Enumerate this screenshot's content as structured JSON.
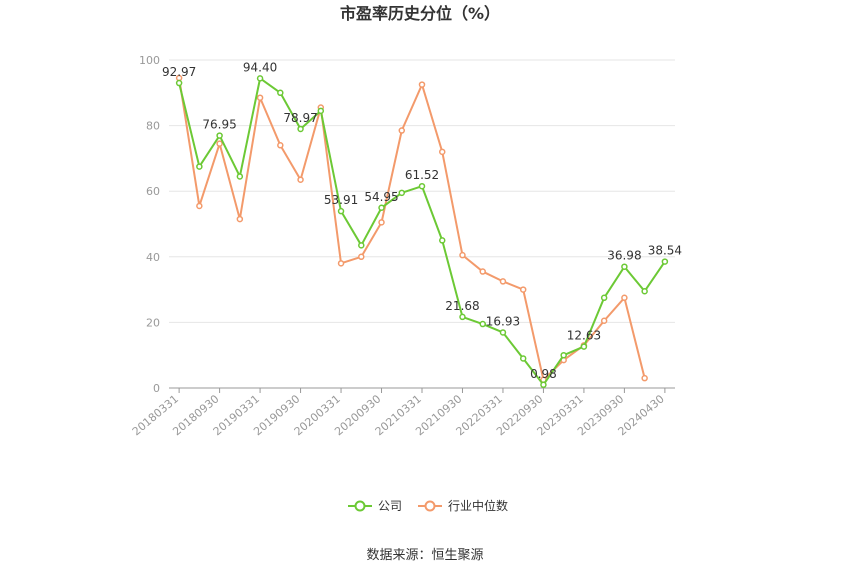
{
  "chart_data": {
    "type": "line",
    "title": "市盈率历史分位（%）",
    "x": [
      "20180331",
      "20180630",
      "20180930",
      "20181231",
      "20190331",
      "20190630",
      "20190930",
      "20191231",
      "20200331",
      "20200630",
      "20200930",
      "20201231",
      "20210331",
      "20210630",
      "20210930",
      "20211231",
      "20220331",
      "20220630",
      "20220930",
      "20221231",
      "20230331",
      "20230630",
      "20230930",
      "20231231",
      "20240430"
    ],
    "x_tick_labels": [
      "20180331",
      "20180930",
      "20190331",
      "20190930",
      "20200331",
      "20200930",
      "20210331",
      "20210930",
      "20220331",
      "20220930",
      "20230331",
      "20230930",
      "20240430"
    ],
    "ylim": [
      0,
      100
    ],
    "y_ticks": [
      0,
      20,
      40,
      60,
      80,
      100
    ],
    "grid": true,
    "legend_position": "bottom",
    "series": [
      {
        "name": "公司",
        "color": "#6cc935",
        "values": [
          92.97,
          67.5,
          76.95,
          64.5,
          94.4,
          90.0,
          78.97,
          84.5,
          53.91,
          43.5,
          54.95,
          59.5,
          61.52,
          45.0,
          21.68,
          19.5,
          16.93,
          9.0,
          0.98,
          10.0,
          12.63,
          27.5,
          36.98,
          29.5,
          38.54
        ],
        "labels": [
          "92.97",
          "",
          "76.95",
          "",
          "94.40",
          "",
          "78.97",
          "",
          "53.91",
          "",
          "54.95",
          "",
          "61.52",
          "",
          "21.68",
          "",
          "16.93",
          "",
          "0.98",
          "",
          "12.63",
          "",
          "36.98",
          "",
          "38.54"
        ]
      },
      {
        "name": "行业中位数",
        "color": "#f39a6b",
        "values": [
          94.5,
          55.5,
          74.5,
          51.5,
          88.5,
          74.0,
          63.5,
          85.5,
          38.0,
          40.0,
          50.5,
          78.5,
          92.5,
          72.0,
          40.5,
          35.5,
          32.5,
          30.0,
          2.5,
          8.5,
          13.0,
          20.5,
          27.5,
          3.0,
          null
        ]
      }
    ]
  },
  "footer": {
    "source": "数据来源：恒生聚源"
  }
}
